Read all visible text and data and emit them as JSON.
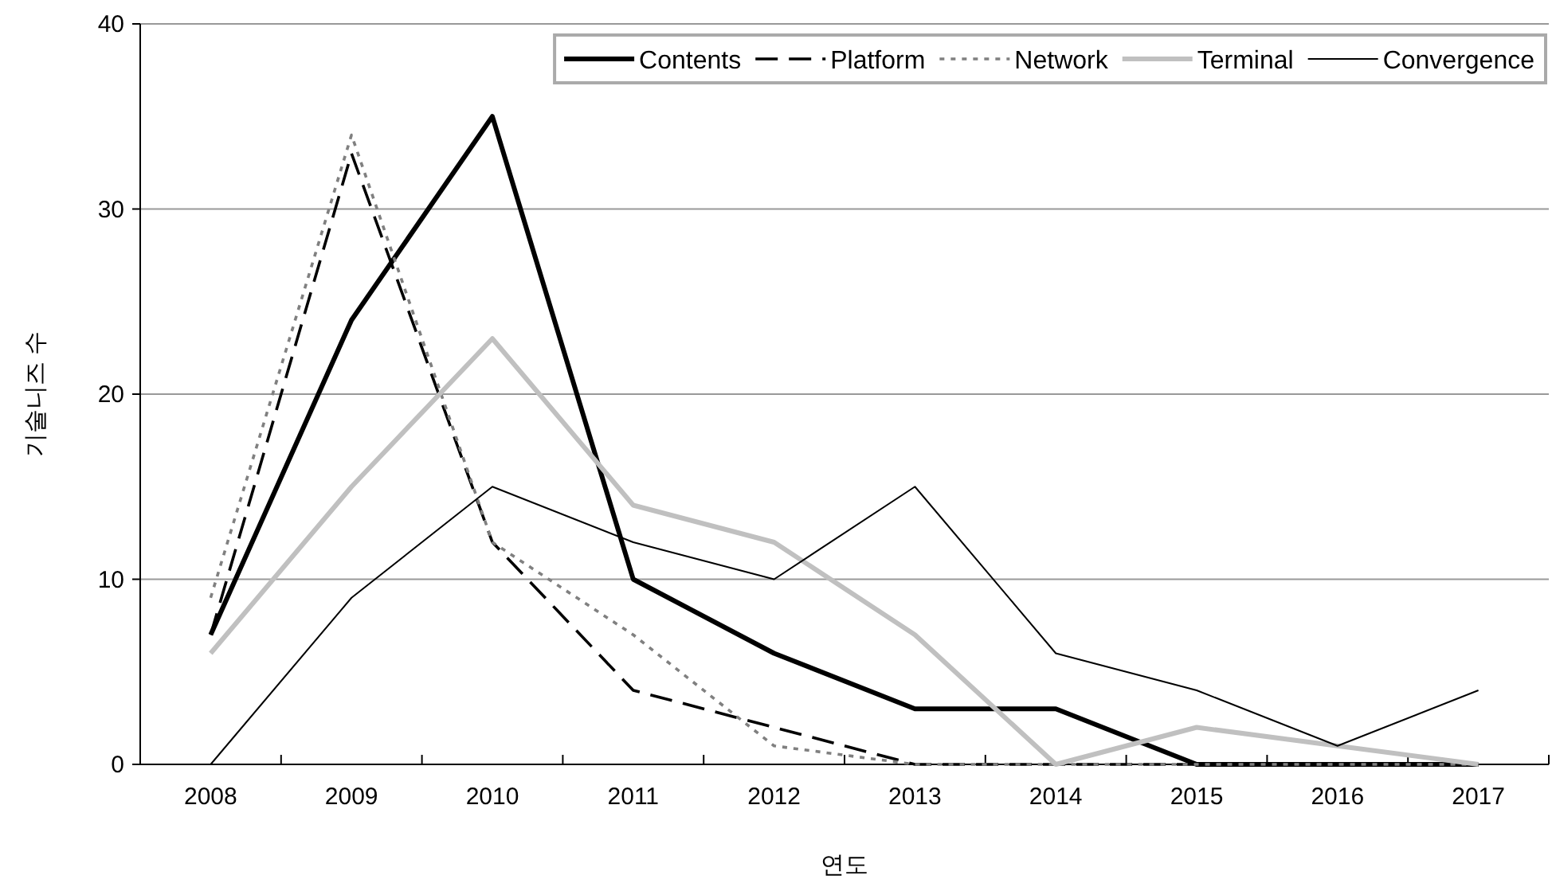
{
  "chart_data": {
    "type": "line",
    "xlabel": "연도",
    "ylabel": "기술니즈 수",
    "categories": [
      "2008",
      "2009",
      "2010",
      "2011",
      "2012",
      "2013",
      "2014",
      "2015",
      "2016",
      "2017"
    ],
    "series": [
      {
        "name": "Contents",
        "color": "#000000",
        "line_style": "solid",
        "values": [
          7,
          24,
          35,
          10,
          6,
          3,
          3,
          0,
          0,
          0
        ]
      },
      {
        "name": "Platform",
        "color": "#000000",
        "line_style": "dashed",
        "values": [
          7,
          33,
          12,
          4,
          2,
          0,
          0,
          0,
          0,
          0
        ]
      },
      {
        "name": "Network",
        "color": "#808080",
        "line_style": "dotted",
        "values": [
          9,
          34,
          12,
          7,
          1,
          0,
          0,
          0,
          0,
          0
        ]
      },
      {
        "name": "Terminal",
        "color": "#c0c0c0",
        "line_style": "solid",
        "values": [
          6,
          15,
          23,
          14,
          12,
          7,
          0,
          2,
          1,
          0
        ]
      },
      {
        "name": "Convergence",
        "color": "#000000",
        "line_style": "solid",
        "values": [
          0,
          9,
          15,
          12,
          10,
          15,
          6,
          4,
          1,
          4
        ]
      }
    ],
    "ylim": [
      0,
      40
    ],
    "yticks": [
      0,
      10,
      20,
      30,
      40
    ],
    "grid": "y",
    "legend": "top right",
    "marker": "none"
  }
}
